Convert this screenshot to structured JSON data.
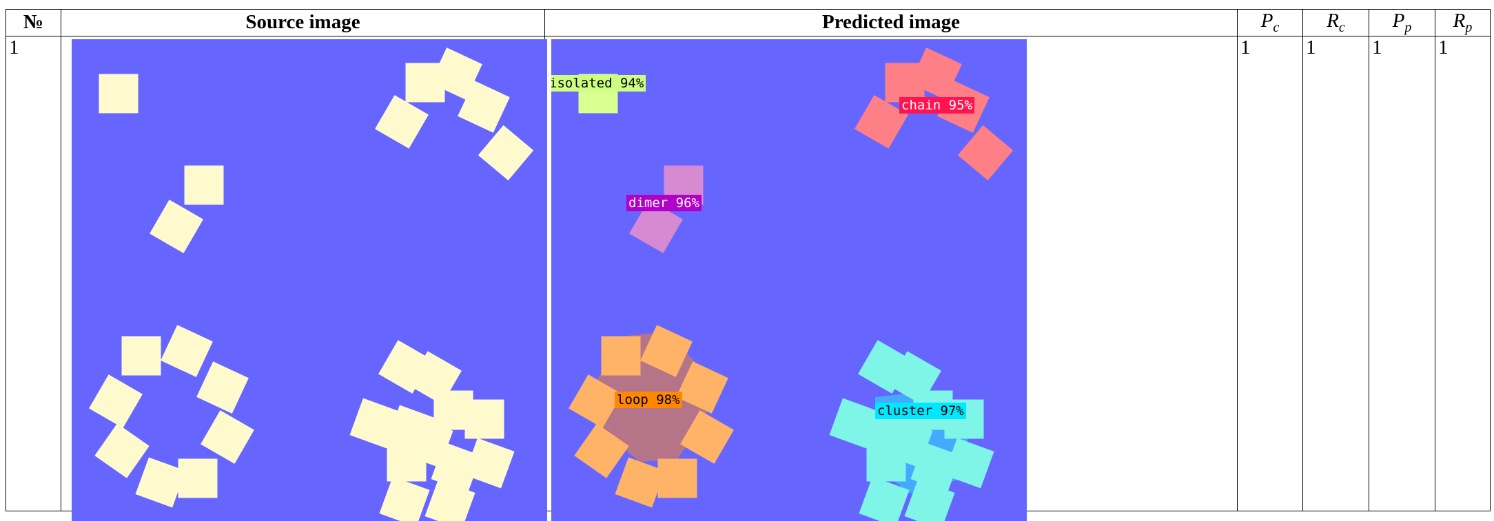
{
  "table": {
    "headers": {
      "num": "№",
      "source": "Source image",
      "predicted": "Predicted image",
      "pc_main": "P",
      "pc_sub": "c",
      "rc_main": "R",
      "rc_sub": "c",
      "pp_main": "P",
      "pp_sub": "p",
      "rp_main": "R",
      "rp_sub": "p"
    },
    "rows": [
      {
        "num": "1",
        "pc": "1",
        "rc": "1",
        "pp": "1",
        "rp": "1"
      }
    ]
  },
  "detections": [
    {
      "label": "isolated 94%",
      "class": "isolated",
      "confidence": 94,
      "color": "#ccff80"
    },
    {
      "label": "chain 95%",
      "class": "chain",
      "confidence": 95,
      "color": "#ff1450"
    },
    {
      "label": "dimer 96%",
      "class": "dimer",
      "confidence": 96,
      "color": "#b200c8"
    },
    {
      "label": "loop 98%",
      "class": "loop",
      "confidence": 98,
      "color": "#ff8800"
    },
    {
      "label": "cluster 97%",
      "class": "cluster",
      "confidence": 97,
      "color": "#00e8ff"
    }
  ],
  "colors": {
    "background": "#6666ff",
    "square_source": "#fffacd",
    "isolated_fill": "#d9ff91",
    "chain_fill": "#ff7f86",
    "dimer_fill": "#d58ad1",
    "loop_fill": "#ffb366",
    "loop_inner": "#b57487",
    "cluster_fill": "#7ff5e8",
    "cluster_overlap": "#44aaff"
  }
}
